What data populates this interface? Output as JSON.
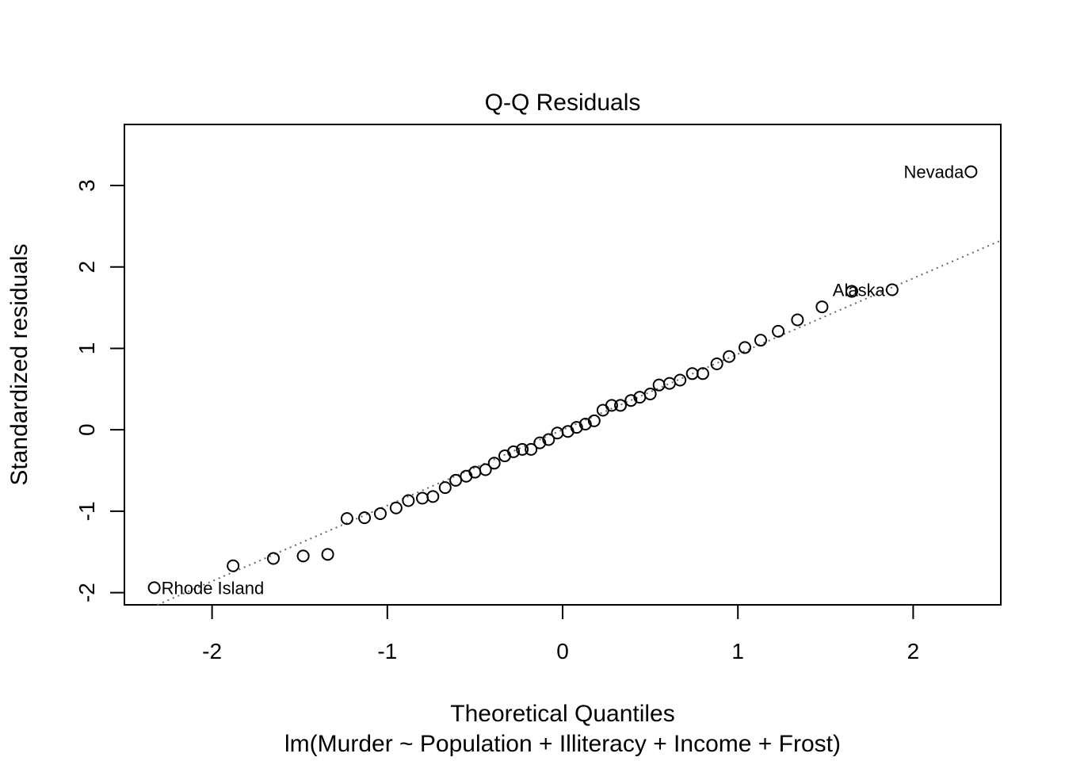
{
  "chart_data": {
    "type": "scatter",
    "title": "Q-Q Residuals",
    "xlabel": "Theoretical Quantiles",
    "sublabel": "lm(Murder ~ Population + Illiteracy + Income + Frost)",
    "ylabel": "Standardized residuals",
    "xlim": [
      -2.5,
      2.5
    ],
    "ylim": [
      -2.15,
      3.75
    ],
    "x_ticks": [
      -2,
      -1,
      0,
      1,
      2
    ],
    "x_tick_labels": [
      "-2",
      "-1",
      "0",
      "1",
      "2"
    ],
    "y_ticks": [
      -2,
      -1,
      0,
      1,
      2,
      3
    ],
    "y_tick_labels": [
      "-2",
      "-1",
      "0",
      "1",
      "2",
      "3"
    ],
    "points": [
      {
        "x": -2.33,
        "y": -1.94
      },
      {
        "x": -1.88,
        "y": -1.67
      },
      {
        "x": -1.65,
        "y": -1.58
      },
      {
        "x": -1.48,
        "y": -1.55
      },
      {
        "x": -1.34,
        "y": -1.53
      },
      {
        "x": -1.23,
        "y": -1.09
      },
      {
        "x": -1.13,
        "y": -1.08
      },
      {
        "x": -1.04,
        "y": -1.03
      },
      {
        "x": -0.95,
        "y": -0.96
      },
      {
        "x": -0.88,
        "y": -0.87
      },
      {
        "x": -0.8,
        "y": -0.84
      },
      {
        "x": -0.74,
        "y": -0.82
      },
      {
        "x": -0.67,
        "y": -0.71
      },
      {
        "x": -0.61,
        "y": -0.62
      },
      {
        "x": -0.55,
        "y": -0.57
      },
      {
        "x": -0.5,
        "y": -0.52
      },
      {
        "x": -0.44,
        "y": -0.49
      },
      {
        "x": -0.39,
        "y": -0.41
      },
      {
        "x": -0.33,
        "y": -0.32
      },
      {
        "x": -0.28,
        "y": -0.27
      },
      {
        "x": -0.23,
        "y": -0.24
      },
      {
        "x": -0.18,
        "y": -0.24
      },
      {
        "x": -0.13,
        "y": -0.16
      },
      {
        "x": -0.08,
        "y": -0.12
      },
      {
        "x": -0.03,
        "y": -0.04
      },
      {
        "x": 0.03,
        "y": -0.02
      },
      {
        "x": 0.08,
        "y": 0.03
      },
      {
        "x": 0.13,
        "y": 0.07
      },
      {
        "x": 0.18,
        "y": 0.11
      },
      {
        "x": 0.23,
        "y": 0.24
      },
      {
        "x": 0.28,
        "y": 0.3
      },
      {
        "x": 0.33,
        "y": 0.3
      },
      {
        "x": 0.39,
        "y": 0.36
      },
      {
        "x": 0.44,
        "y": 0.4
      },
      {
        "x": 0.5,
        "y": 0.44
      },
      {
        "x": 0.55,
        "y": 0.55
      },
      {
        "x": 0.61,
        "y": 0.57
      },
      {
        "x": 0.67,
        "y": 0.61
      },
      {
        "x": 0.74,
        "y": 0.69
      },
      {
        "x": 0.8,
        "y": 0.69
      },
      {
        "x": 0.88,
        "y": 0.81
      },
      {
        "x": 0.95,
        "y": 0.9
      },
      {
        "x": 1.04,
        "y": 1.01
      },
      {
        "x": 1.13,
        "y": 1.1
      },
      {
        "x": 1.23,
        "y": 1.21
      },
      {
        "x": 1.34,
        "y": 1.35
      },
      {
        "x": 1.48,
        "y": 1.51
      },
      {
        "x": 1.65,
        "y": 1.7
      },
      {
        "x": 1.88,
        "y": 1.72
      },
      {
        "x": 2.33,
        "y": 3.17
      }
    ],
    "annotations": [
      {
        "label": "Nevada",
        "x": 2.33,
        "y": 3.17,
        "side": "left"
      },
      {
        "label": "Alaska",
        "x": 1.88,
        "y": 1.72,
        "side": "left"
      },
      {
        "label": "Rhode Island",
        "x": -2.33,
        "y": -1.94,
        "side": "right"
      }
    ],
    "reference_line": {
      "intercept": 0.0,
      "slope": 0.93,
      "style": "dotted",
      "color": "#666666"
    },
    "grid": false,
    "legend": "none"
  }
}
